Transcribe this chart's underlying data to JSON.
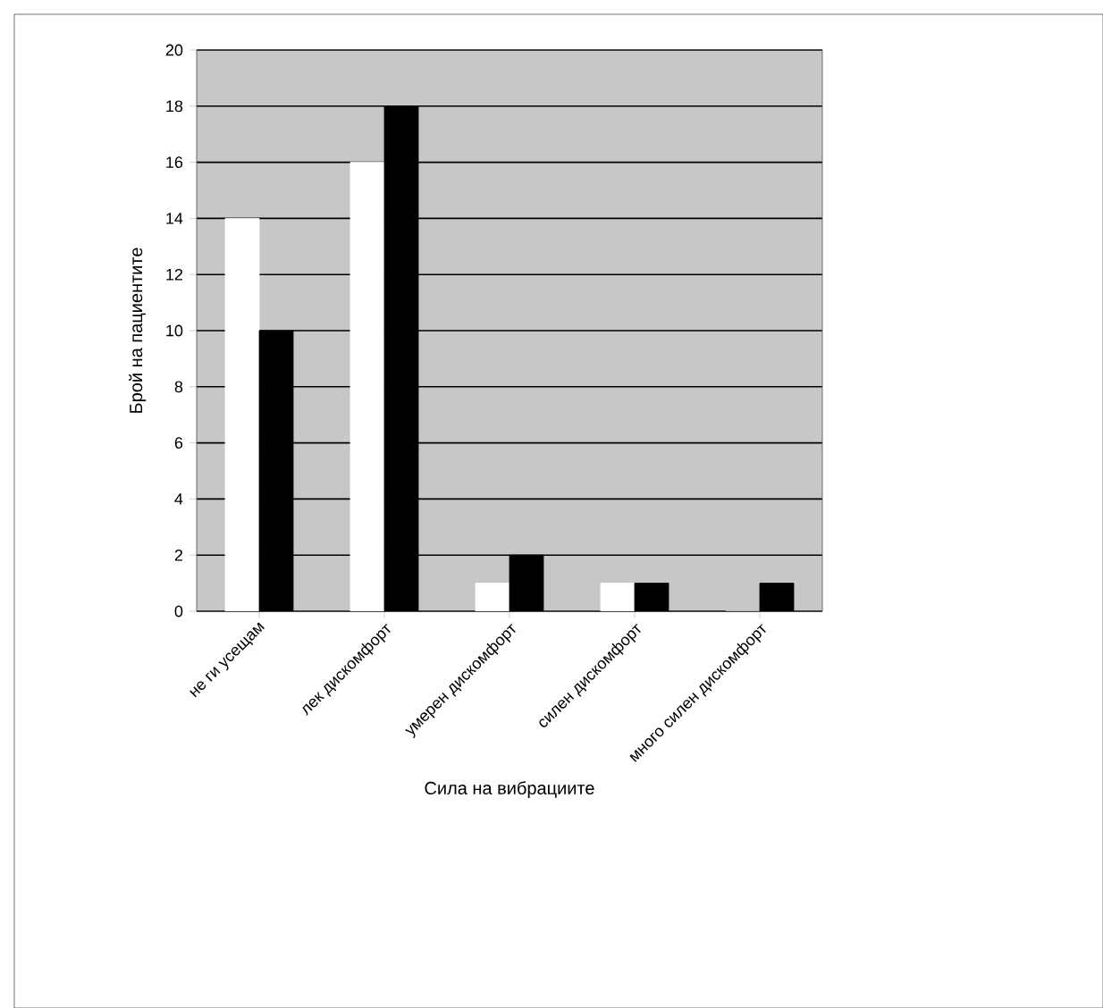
{
  "chart_data": {
    "type": "bar",
    "xlabel": "Сила на вибрациите",
    "ylabel": "Брой на пациентите",
    "categories": [
      "не ги усещам",
      "лек дискомфорт",
      "умерен дискомфорт",
      "силен дискомфорт",
      "много силен дискомфорт"
    ],
    "series": [
      {
        "color": "#ffffff",
        "values": [
          14,
          16,
          1,
          1,
          0
        ]
      },
      {
        "color": "#000000",
        "values": [
          10,
          18,
          2,
          1,
          1
        ]
      }
    ],
    "ylim": [
      0,
      20
    ],
    "yticks": [
      0,
      2,
      4,
      6,
      8,
      10,
      12,
      14,
      16,
      18,
      20
    ],
    "grid": "y"
  }
}
